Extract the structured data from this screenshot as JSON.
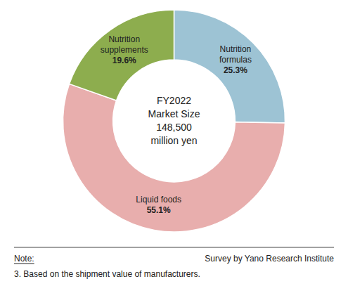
{
  "chart_data": {
    "type": "pie",
    "categories": [
      "Nutrition\nformulas",
      "Liquid foods",
      "Nutrition\nsupplements"
    ],
    "values": [
      25.3,
      55.1,
      19.6
    ],
    "value_labels": [
      "25.3%",
      "55.1%",
      "19.6%"
    ],
    "colors": [
      "#9DC3D4",
      "#E8AEAD",
      "#8DAD4E"
    ],
    "data_labels": true,
    "annotations": [
      "FY2022\nMarket Size\n148,500\nmillion yen",
      "Note:",
      "3. Based on the shipment value of manufacturers.",
      "Survey by Yano Research Institute"
    ]
  }
}
